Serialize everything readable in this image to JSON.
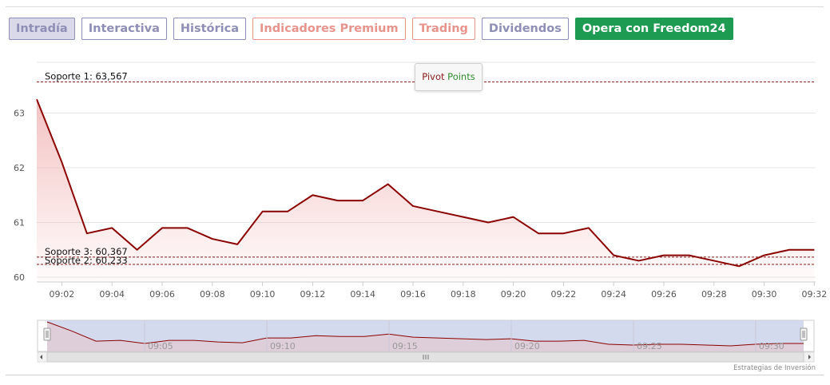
{
  "tabs": [
    {
      "label": "Intradía"
    },
    {
      "label": "Interactiva"
    },
    {
      "label": "Histórica"
    },
    {
      "label": "Indicadores Premium"
    },
    {
      "label": "Trading"
    },
    {
      "label": "Dividendos"
    },
    {
      "label": "Opera con Freedom24"
    }
  ],
  "colors": {
    "line": "#8b0000",
    "fill": "#f2b8b8",
    "tab_purple": "#8e8eb6",
    "tab_coral": "#e8938c",
    "tab_green": "#1e9b52",
    "navigator_mask": "#cdd3ea"
  },
  "tooltip": {
    "word1": "Pivot",
    "word2": "Points"
  },
  "credit": "Estrategias de Inversión",
  "chart_data": {
    "type": "area",
    "title": "",
    "xlabel": "",
    "ylabel": "",
    "x": [
      "09:01",
      "09:02",
      "09:03",
      "09:04",
      "09:05",
      "09:06",
      "09:07",
      "09:08",
      "09:09",
      "09:10",
      "09:11",
      "09:12",
      "09:13",
      "09:14",
      "09:15",
      "09:16",
      "09:17",
      "09:18",
      "09:19",
      "09:20",
      "09:21",
      "09:22",
      "09:23",
      "09:24",
      "09:25",
      "09:26",
      "09:27",
      "09:28",
      "09:29",
      "09:30",
      "09:31",
      "09:32"
    ],
    "values": [
      63.25,
      62.1,
      60.8,
      60.9,
      60.5,
      60.9,
      60.9,
      60.7,
      60.6,
      61.2,
      61.2,
      61.5,
      61.4,
      61.4,
      61.7,
      61.3,
      61.2,
      61.1,
      61.0,
      61.1,
      60.8,
      60.8,
      60.9,
      60.4,
      60.3,
      60.4,
      60.4,
      60.3,
      60.2,
      60.4,
      60.5,
      60.5
    ],
    "x_ticks": [
      "09:02",
      "09:04",
      "09:06",
      "09:08",
      "09:10",
      "09:12",
      "09:14",
      "09:16",
      "09:18",
      "09:20",
      "09:22",
      "09:24",
      "09:26",
      "09:28",
      "09:30",
      "09:32"
    ],
    "y_ticks": [
      "60",
      "61",
      "62",
      "63"
    ],
    "ylim": [
      59.9,
      63.8
    ],
    "grid": true,
    "reference_lines": [
      {
        "label": "Soporte 1: 63,567",
        "value": 63.567
      },
      {
        "label": "Soporte 3: 60,367",
        "value": 60.367
      },
      {
        "label": "Soporte 2: 60,233",
        "value": 60.233
      }
    ],
    "navigator": {
      "labels": [
        "09:05",
        "09:10",
        "09:15",
        "09:20",
        "09:25",
        "09:30"
      ],
      "selection": "full range"
    }
  }
}
